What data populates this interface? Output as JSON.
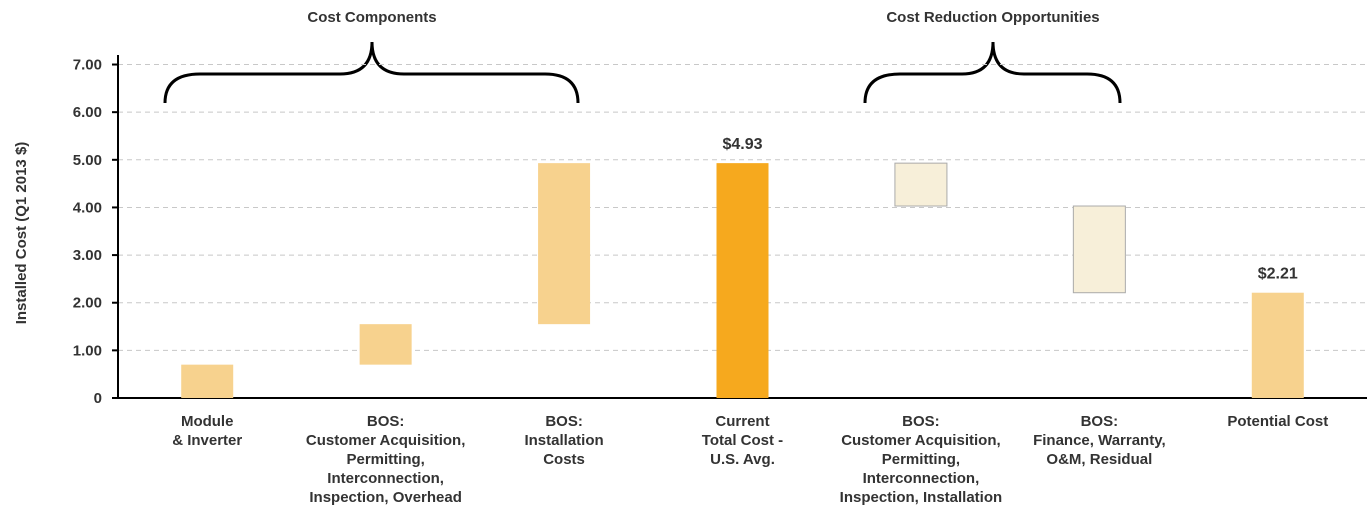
{
  "chart_data": {
    "type": "waterfall",
    "annotations": [
      "Cost Components",
      "Cost Reduction Opportunities"
    ],
    "ylabel": "Installed Cost (Q1 2013 $)",
    "categories": [
      "Module\n& Inverter",
      "BOS:\nCustomer Acquisition,\nPermitting,\nInterconnection,\nInspection, Overhead",
      "BOS:\nInstallation\nCosts",
      "Current\nTotal Cost -\nU.S. Avg.",
      "BOS:\nCustomer Acquisition,\nPermitting,\nInterconnection,\nInspection, Installation",
      "BOS:\nFinance, Warranty,\nO&M, Residual",
      "Potential Cost"
    ],
    "values": [
      0.7,
      0.85,
      3.38,
      4.93,
      -0.9,
      -1.82,
      2.21
    ],
    "value_labels": [
      null,
      null,
      null,
      "$4.93",
      null,
      null,
      "$2.21"
    ],
    "measure": [
      "relative",
      "relative",
      "relative",
      "total",
      "relative",
      "relative",
      "total"
    ],
    "colors": {
      "increase": "#f7d28e",
      "total": "#f6a91e",
      "decrease": "#f7efd9",
      "final": "#f7d28e"
    },
    "ylim": [
      0,
      7.2
    ],
    "yticks": [
      0,
      {
        "value": 1,
        "label": "1.00"
      },
      {
        "value": 2,
        "label": "2.00"
      },
      {
        "value": 3,
        "label": "3.00"
      },
      {
        "value": 4,
        "label": "4.00"
      },
      {
        "value": 5,
        "label": "5.00"
      },
      {
        "value": 6,
        "label": "6.00"
      },
      {
        "value": 7,
        "label": "7.00"
      }
    ],
    "grid": true
  }
}
